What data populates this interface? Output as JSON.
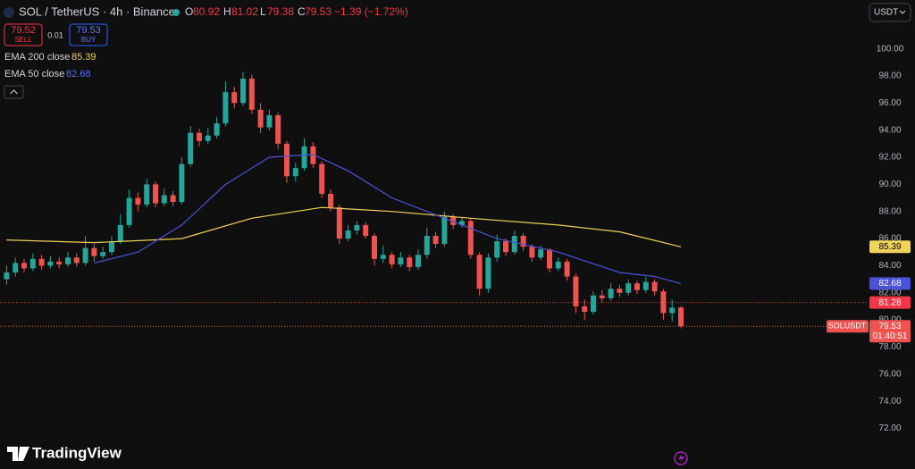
{
  "header": {
    "symbol": "SOL / TetherUS · 4h · Binance",
    "o": "O",
    "h": "H",
    "l": "L",
    "c": "C",
    "change": "−1.39 (−1.72%)"
  },
  "order_panel": {
    "sell_price": "79.52",
    "sell": "SELL",
    "spread": "0.01",
    "buy_price": "79.53",
    "buy": "BUY"
  },
  "currency": "USDT",
  "brand": "TradingView",
  "chart_data": {
    "type": "candlestick",
    "symbol_label": "SOLUSDT",
    "countdown": "01:40:51",
    "up_color": "#26a69a",
    "down_color": "#ef5350",
    "grid": false,
    "ylim": [
      69,
      103.6
    ],
    "yticks": [
      {
        "value": 72,
        "label": "72.00"
      },
      {
        "value": 74,
        "label": "74.00"
      },
      {
        "value": 76,
        "label": "76.00"
      },
      {
        "value": 78,
        "label": "78.00"
      },
      {
        "value": 80,
        "label": "80.00"
      },
      {
        "value": 82,
        "label": "82.00"
      },
      {
        "value": 84,
        "label": "84.00"
      },
      {
        "value": 86,
        "label": "86.00"
      },
      {
        "value": 88,
        "label": "88.00"
      },
      {
        "value": 90,
        "label": "90.00"
      },
      {
        "value": 92,
        "label": "92.00"
      },
      {
        "value": 94,
        "label": "94.00"
      },
      {
        "value": 96,
        "label": "96.00"
      },
      {
        "value": 98,
        "label": "98.00"
      },
      {
        "value": 100,
        "label": "100.00"
      }
    ],
    "open": [
      83.0,
      83.5,
      84.2,
      83.8,
      84.5,
      84.0,
      84.3,
      84.1,
      84.6,
      84.2,
      85.3,
      84.7,
      85.0,
      85.8,
      87.0,
      89.0,
      88.5,
      90.0,
      88.6,
      89.2,
      88.7,
      91.5,
      93.8,
      93.2,
      93.6,
      94.5,
      96.8,
      96.0,
      97.8,
      95.5,
      94.2,
      95.1,
      93.0,
      90.6,
      91.2,
      92.8,
      91.5,
      89.3,
      88.3,
      86.0,
      86.6,
      87.0,
      86.2,
      84.5,
      84.8,
      84.1,
      84.6,
      83.9,
      84.8,
      86.2,
      85.6,
      87.6,
      87.0,
      87.3,
      84.8,
      82.3,
      84.6,
      85.8,
      85.0,
      86.2,
      85.4,
      84.6,
      85.2,
      83.8,
      84.3,
      83.2,
      81.0,
      80.6,
      81.8,
      81.6,
      82.3,
      82.0,
      82.7,
      82.2,
      82.8,
      82.1,
      80.5,
      80.92
    ],
    "high": [
      84.0,
      84.6,
      84.5,
      84.9,
      84.8,
      84.7,
      84.6,
      85.0,
      84.9,
      86.2,
      85.6,
      85.4,
      86.2,
      87.8,
      89.6,
      89.4,
      90.4,
      90.2,
      89.7,
      89.5,
      92.0,
      94.3,
      94.1,
      94.2,
      95.0,
      97.6,
      97.2,
      98.3,
      98.1,
      96.0,
      95.5,
      95.3,
      93.2,
      91.6,
      93.4,
      93.1,
      91.7,
      89.6,
      88.5,
      87.0,
      87.3,
      87.2,
      86.4,
      85.5,
      85.0,
      85.0,
      84.8,
      85.2,
      86.8,
      86.5,
      88.0,
      87.8,
      87.6,
      87.5,
      85.0,
      84.9,
      86.3,
      86.0,
      86.6,
      86.4,
      85.6,
      85.5,
      85.3,
      84.6,
      84.5,
      83.4,
      81.5,
      82.1,
      82.2,
      82.7,
      82.6,
      83.0,
      82.9,
      83.2,
      83.0,
      82.3,
      81.5,
      81.02
    ],
    "low": [
      82.6,
      83.2,
      83.5,
      83.6,
      83.7,
      83.8,
      83.8,
      83.9,
      83.9,
      84.0,
      84.3,
      84.5,
      84.8,
      85.6,
      86.8,
      88.0,
      88.3,
      88.3,
      88.4,
      88.4,
      88.5,
      91.3,
      92.8,
      93.0,
      93.4,
      94.3,
      95.6,
      95.8,
      95.2,
      93.8,
      94.0,
      92.6,
      90.1,
      90.2,
      91.0,
      91.2,
      89.0,
      88.0,
      85.6,
      85.8,
      86.3,
      86.0,
      84.0,
      84.2,
      83.8,
      83.9,
      83.6,
      83.7,
      84.5,
      85.3,
      85.4,
      86.7,
      86.8,
      84.5,
      81.8,
      82.0,
      84.3,
      84.7,
      84.8,
      85.1,
      84.3,
      84.4,
      83.5,
      83.6,
      82.9,
      80.5,
      80.0,
      80.4,
      81.3,
      81.4,
      81.7,
      81.8,
      81.9,
      82.0,
      81.8,
      80.0,
      79.9,
      79.38
    ],
    "close": [
      83.5,
      84.2,
      83.8,
      84.5,
      84.0,
      84.3,
      84.1,
      84.6,
      84.2,
      85.3,
      84.7,
      85.0,
      85.8,
      87.0,
      89.0,
      88.5,
      90.0,
      88.6,
      89.2,
      88.7,
      91.5,
      93.8,
      93.2,
      93.6,
      94.5,
      96.8,
      96.0,
      97.8,
      95.5,
      94.2,
      95.1,
      93.0,
      90.6,
      91.2,
      92.8,
      91.5,
      89.3,
      88.3,
      86.0,
      86.6,
      87.0,
      86.2,
      84.5,
      84.8,
      84.1,
      84.6,
      83.9,
      84.8,
      86.2,
      85.6,
      87.6,
      87.0,
      87.3,
      84.8,
      82.3,
      84.6,
      85.8,
      85.0,
      86.2,
      85.4,
      84.6,
      85.2,
      83.8,
      84.3,
      83.2,
      81.0,
      80.6,
      81.8,
      81.6,
      82.3,
      82.0,
      82.7,
      82.2,
      82.8,
      82.1,
      80.5,
      80.9,
      79.53
    ],
    "series": [
      {
        "name": "EMA 200 close",
        "color": "#f0d35a",
        "x": [
          0,
          10,
          20,
          28,
          36,
          44,
          53,
          63,
          70,
          77
        ],
        "values": [
          85.9,
          85.7,
          86.0,
          87.5,
          88.3,
          88.0,
          87.5,
          87.0,
          86.5,
          85.39
        ]
      },
      {
        "name": "EMA 50 close",
        "color": "#4a52d8",
        "x": [
          10,
          15,
          20,
          25,
          30,
          35,
          39,
          44,
          50,
          56,
          63,
          70,
          74,
          77
        ],
        "values": [
          84.2,
          85.0,
          87.0,
          90.0,
          92.0,
          92.2,
          91.0,
          89.0,
          87.5,
          86.0,
          85.0,
          83.5,
          83.2,
          82.68
        ]
      }
    ],
    "price_lines": [
      {
        "value": 81.28,
        "color": "#f23645"
      }
    ]
  }
}
